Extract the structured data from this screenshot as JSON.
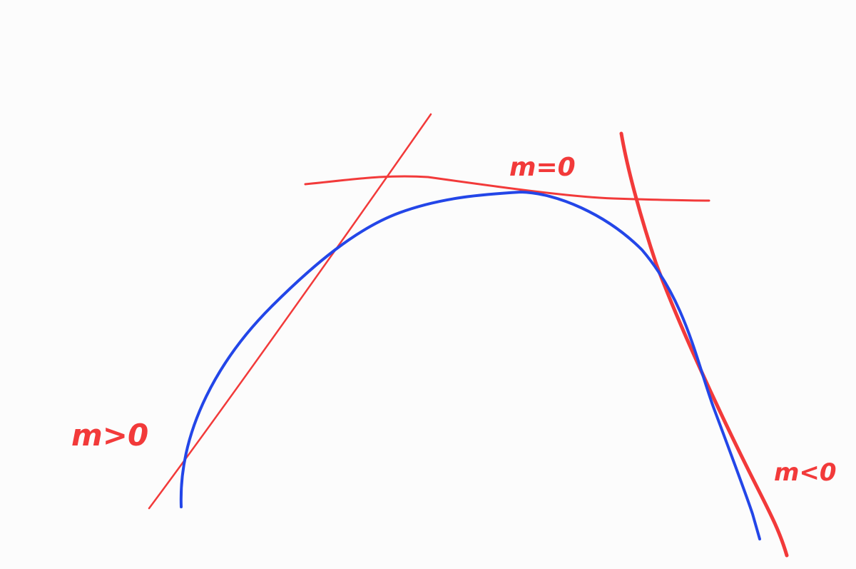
{
  "colors": {
    "background": "#fcfcfc",
    "curve": "#2346e8",
    "tangent": "#f23a3a"
  },
  "labels": {
    "positive_slope": "m>0",
    "zero_slope": "m=0",
    "negative_slope": "m<0"
  }
}
